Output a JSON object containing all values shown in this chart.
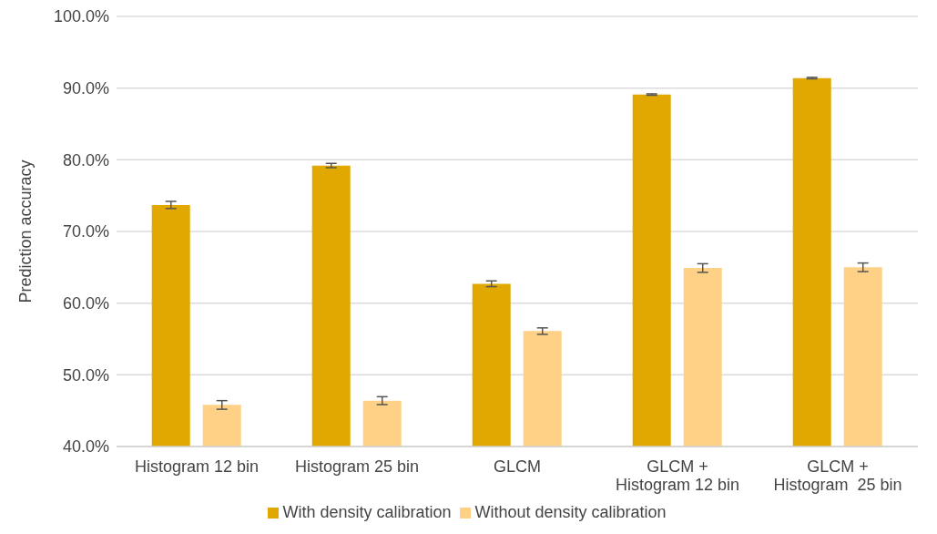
{
  "chart_data": {
    "type": "bar",
    "ylabel": "Prediction accuracy",
    "categories": [
      "Histogram 12 bin",
      "Histogram 25 bin",
      "GLCM",
      "GLCM +\nHistogram 12 bin",
      "GLCM +\nHistogram  25 bin"
    ],
    "series": [
      {
        "name": "With density calibration",
        "color": "#e0a800",
        "values": [
          73.7,
          79.2,
          62.7,
          89.1,
          91.4
        ],
        "errors": [
          0.5,
          0.3,
          0.4,
          0.1,
          0.1
        ]
      },
      {
        "name": "Without density calibration",
        "color": "#fed186",
        "values": [
          45.8,
          46.4,
          56.1,
          64.9,
          65.0
        ],
        "errors": [
          0.6,
          0.55,
          0.45,
          0.6,
          0.6
        ]
      }
    ],
    "ylim": [
      40,
      100
    ],
    "yticks": [
      {
        "value": 40,
        "label": "40.0%"
      },
      {
        "value": 50,
        "label": "50.0%"
      },
      {
        "value": 60,
        "label": "60.0%"
      },
      {
        "value": 70,
        "label": "70.0%"
      },
      {
        "value": 80,
        "label": "80.0%"
      },
      {
        "value": 90,
        "label": "90.0%"
      },
      {
        "value": 100,
        "label": "100.0%"
      }
    ],
    "grid": "y",
    "legend": "bottom"
  }
}
